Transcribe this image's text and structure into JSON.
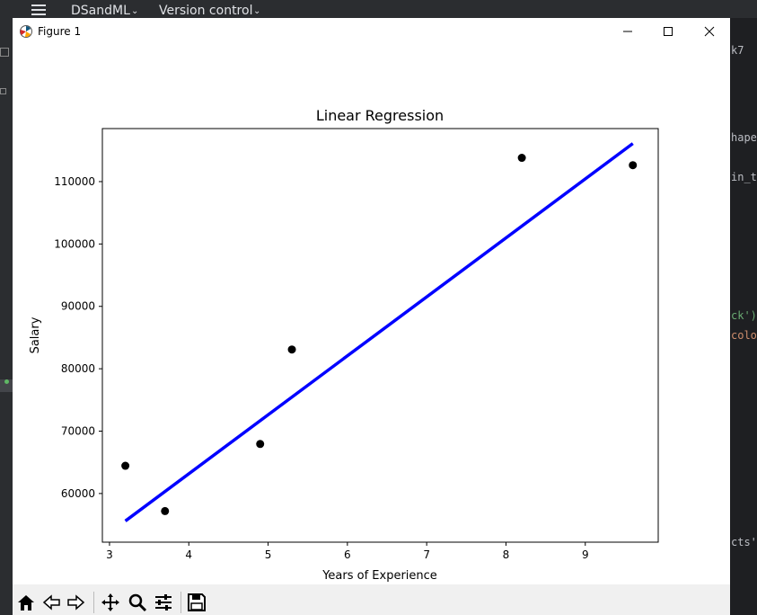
{
  "ide": {
    "project_name": "DSandML",
    "vcs_label": "Version control",
    "right_code_fragments": [
      "k7",
      "hape",
      "in_t",
      "ck')",
      "colo",
      "cts'"
    ]
  },
  "window": {
    "title": "Figure 1"
  },
  "toolbar": {
    "buttons": [
      "home-icon",
      "back-icon",
      "forward-icon",
      "pan-icon",
      "zoom-icon",
      "configure-subplots-icon",
      "save-icon"
    ]
  },
  "chart_data": {
    "type": "scatter",
    "title": "Linear Regression",
    "xlabel": "Years of Experience",
    "ylabel": "Salary",
    "xlim": [
      2.91,
      9.92
    ],
    "ylim": [
      52200,
      118500
    ],
    "x_ticks": [
      3,
      4,
      5,
      6,
      7,
      8,
      9
    ],
    "y_ticks": [
      60000,
      70000,
      80000,
      90000,
      100000,
      110000
    ],
    "x_tick_labels": [
      "3",
      "4",
      "5",
      "6",
      "7",
      "8",
      "9"
    ],
    "y_tick_labels": [
      "60000",
      "70000",
      "80000",
      "90000",
      "100000",
      "110000"
    ],
    "series": [
      {
        "kind": "scatter",
        "color": "#000000",
        "points": [
          [
            3.2,
            64445
          ],
          [
            3.7,
            57189
          ],
          [
            4.9,
            67938
          ],
          [
            5.3,
            83088
          ],
          [
            8.2,
            113812
          ],
          [
            9.6,
            112635
          ]
        ]
      },
      {
        "kind": "line",
        "color": "#0000ff",
        "points": [
          [
            3.2,
            55600
          ],
          [
            9.6,
            116100
          ]
        ]
      }
    ]
  }
}
